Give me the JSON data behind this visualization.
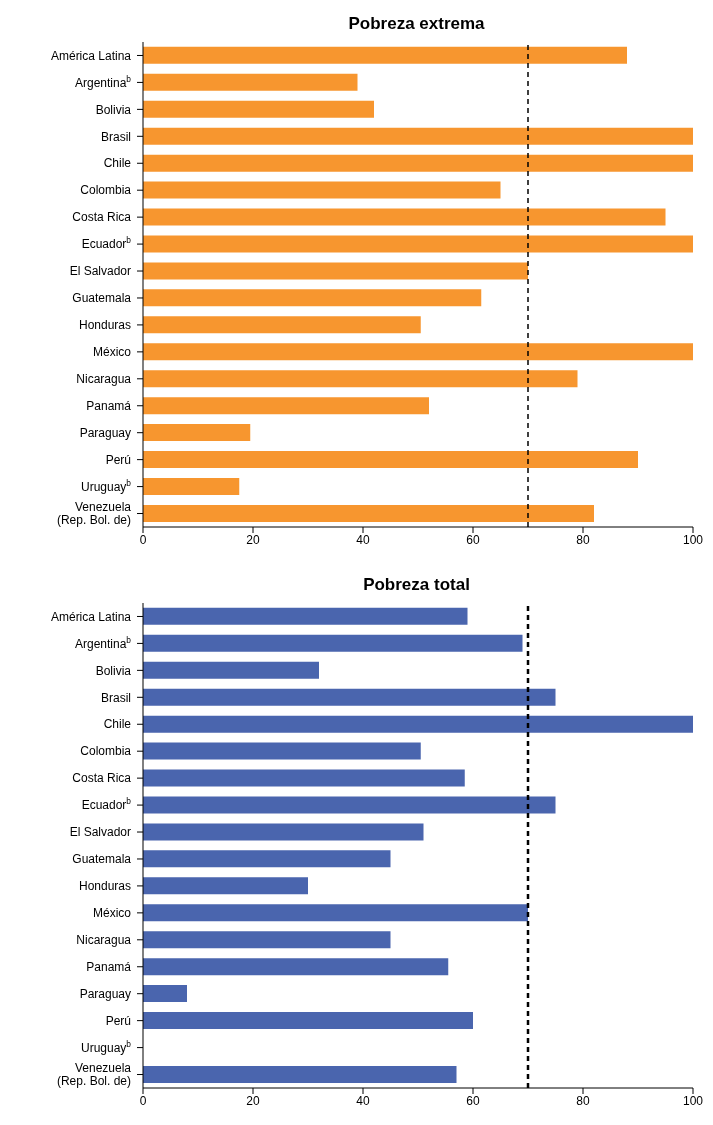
{
  "chart_data": [
    {
      "type": "bar",
      "orientation": "horizontal",
      "title": "Pobreza extrema",
      "categories": [
        "América Latina",
        "Argentina$^{b}$",
        "Bolivia",
        "Brasil",
        "Chile",
        "Colombia",
        "Costa Rica",
        "Ecuador$^{b}$",
        "El Salvador",
        "Guatemala",
        "Honduras",
        "México",
        "Nicaragua",
        "Panamá",
        "Paraguay",
        "Perú",
        "Uruguay$^{b}$",
        "Venezuela\n(Rep. Bol. de)"
      ],
      "values": [
        88,
        39,
        42,
        100,
        100,
        65,
        95,
        100,
        70,
        61.5,
        50.5,
        100,
        79,
        52,
        19.5,
        90,
        17.5,
        82
      ],
      "color": "#f7962f",
      "xlim": [
        0,
        100
      ],
      "xticks": [
        0,
        20,
        40,
        60,
        80,
        100
      ],
      "grid": false,
      "ref_lines": [
        {
          "axis": "x",
          "value": 70,
          "color": "#000000",
          "line_style": "dashed"
        }
      ]
    },
    {
      "type": "bar",
      "orientation": "horizontal",
      "title": "Pobreza total",
      "categories": [
        "América Latina",
        "Argentina$^{b}$",
        "Bolivia",
        "Brasil",
        "Chile",
        "Colombia",
        "Costa Rica",
        "Ecuador$^{b}$",
        "El Salvador",
        "Guatemala",
        "Honduras",
        "México",
        "Nicaragua",
        "Panamá",
        "Paraguay",
        "Perú",
        "Uruguay$^{b}$",
        "Venezuela\n(Rep. Bol. de)"
      ],
      "values": [
        59,
        69,
        32,
        75,
        100,
        50.5,
        58.5,
        75,
        51,
        45,
        30,
        70,
        45,
        55.5,
        8,
        60,
        null,
        57
      ],
      "color": "#4a65ae",
      "xlim": [
        0,
        100
      ],
      "xticks": [
        0,
        20,
        40,
        60,
        80,
        100
      ],
      "grid": false,
      "ref_lines": [
        {
          "axis": "x",
          "value": 70,
          "color": "#000000",
          "line_style": "dashed"
        }
      ]
    }
  ]
}
